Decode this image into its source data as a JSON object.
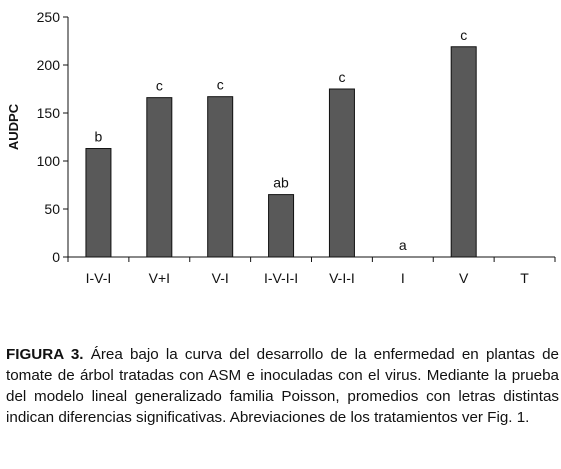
{
  "chart_data": {
    "type": "bar",
    "categories": [
      "I-V-I",
      "V+I",
      "V-I",
      "I-V-I-I",
      "V-I-I",
      "I",
      "V",
      "T"
    ],
    "values": [
      113,
      166,
      167,
      65,
      175,
      0,
      219,
      0
    ],
    "bar_labels": [
      "b",
      "c",
      "c",
      "ab",
      "c",
      "a",
      "c",
      ""
    ],
    "ylabel": "AUDPC",
    "xlabel": "",
    "title": "",
    "ylim": [
      0,
      250
    ],
    "yticks": [
      0,
      50,
      100,
      150,
      200,
      250
    ],
    "grid": false,
    "legend": "none",
    "bar_color": "#595959"
  },
  "caption": {
    "label": "FIGURA 3.",
    "text": " Área bajo la curva del desarrollo de la enfermedad en plantas de tomate de árbol tratadas con ASM e inoculadas con el virus. Mediante la prueba del modelo lineal generalizado familia Poisson, promedios con letras distintas indican diferencias significativas. Abreviaciones de los tratamientos ver Fig. 1."
  }
}
